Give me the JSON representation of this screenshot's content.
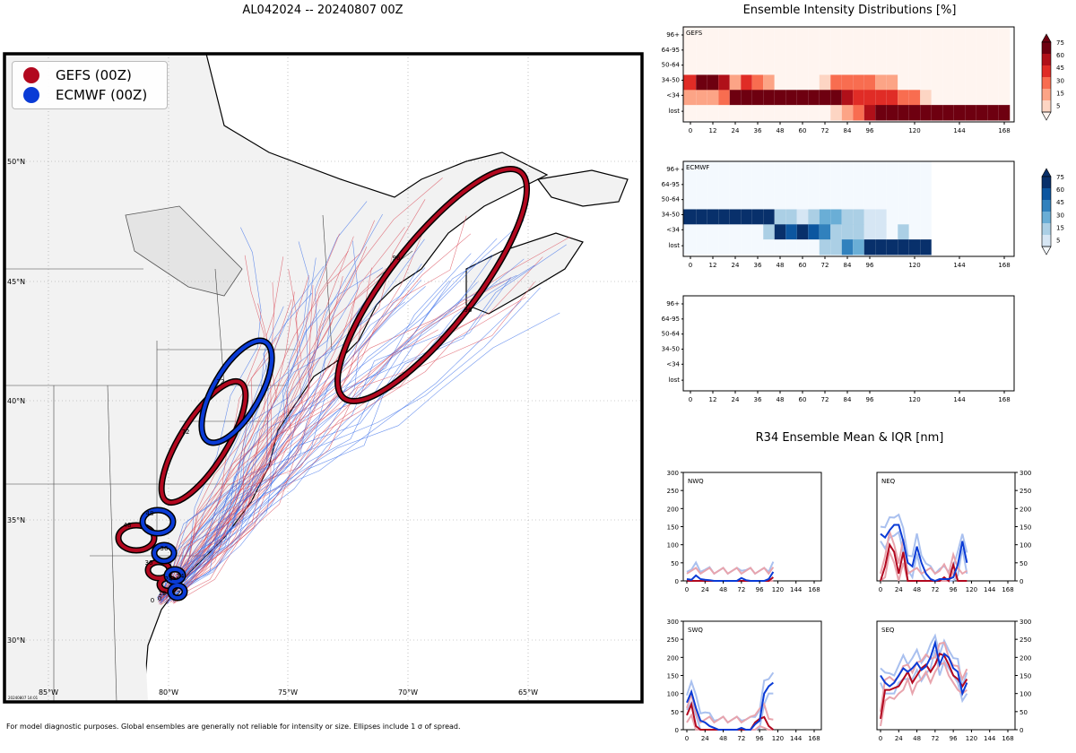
{
  "map": {
    "title": "AL042024 -- 20240807 00Z",
    "legend": [
      {
        "label": "GEFS (00Z)",
        "color": "#b2081f"
      },
      {
        "label": "ECMWF (00Z)",
        "color": "#0a3bd6"
      }
    ],
    "lat_labels": [
      "50°N",
      "45°N",
      "40°N",
      "35°N",
      "30°N"
    ],
    "lon_labels": [
      "85°W",
      "80°W",
      "75°W",
      "70°W",
      "65°W"
    ],
    "ellipse_labels": {
      "gefs": [
        "96",
        "96",
        "72",
        "72",
        "48",
        "36",
        "24",
        "12",
        "0"
      ],
      "ecmwf": [
        "72",
        "48",
        "36",
        "24",
        "12",
        "0"
      ]
    },
    "stamp": "20240807 14:01"
  },
  "intensity": {
    "title": "Ensemble Intensity Distributions [%]",
    "row_labels": [
      "96+",
      "64-95",
      "50-64",
      "34-50",
      "<34",
      "lost"
    ],
    "x_ticks": [
      "0",
      "12",
      "24",
      "36",
      "48",
      "60",
      "72",
      "84",
      "96",
      "120",
      "144",
      "168"
    ],
    "colorbar_ticks": [
      "75",
      "60",
      "45",
      "30",
      "15",
      "5"
    ],
    "panels": [
      {
        "name": "GEFS",
        "label": "GEFS"
      },
      {
        "name": "ECMWF",
        "label": "ECMWF"
      },
      {
        "name": "empty",
        "label": ""
      }
    ]
  },
  "r34": {
    "title": "R34 Ensemble Mean & IQR [nm]",
    "y_ticks": [
      "300",
      "250",
      "200",
      "150",
      "100",
      "50",
      "0"
    ],
    "x_ticks": [
      "0",
      "24",
      "48",
      "72",
      "96",
      "120",
      "144",
      "168"
    ],
    "panels": [
      "NWQ",
      "NEQ",
      "SWQ",
      "SEQ"
    ]
  },
  "footer": "For model diagnostic purposes. Global ensembles are generally not reliable for intensity or size. Ellipses include 1 σ of spread.",
  "chart_data": [
    {
      "type": "heatmap",
      "title": "GEFS",
      "x_hours": [
        0,
        6,
        12,
        18,
        24,
        30,
        36,
        42,
        48,
        54,
        60,
        66,
        72,
        78,
        84,
        90,
        96,
        102,
        108,
        114,
        120,
        126,
        132,
        138,
        144,
        150,
        156,
        162,
        168
      ],
      "rows": [
        "96+",
        "64-95",
        "50-64",
        "34-50",
        "<34",
        "lost"
      ],
      "values": {
        "96+": [
          2,
          2,
          2,
          2,
          2,
          2,
          2,
          2,
          2,
          2,
          2,
          2,
          2,
          2,
          2,
          2,
          2,
          2,
          2,
          2,
          2,
          2,
          2,
          2,
          2,
          2,
          2,
          2,
          2
        ],
        "64-95": [
          2,
          2,
          2,
          2,
          2,
          2,
          2,
          2,
          2,
          2,
          2,
          2,
          2,
          2,
          2,
          2,
          2,
          2,
          2,
          2,
          2,
          2,
          2,
          2,
          2,
          2,
          2,
          2,
          2
        ],
        "50-64": [
          2,
          2,
          2,
          2,
          2,
          2,
          2,
          2,
          2,
          2,
          2,
          2,
          2,
          2,
          2,
          2,
          2,
          2,
          2,
          2,
          2,
          2,
          2,
          2,
          2,
          2,
          2,
          2,
          2
        ],
        "34-50": [
          55,
          90,
          88,
          70,
          15,
          55,
          40,
          20,
          2,
          2,
          2,
          2,
          10,
          35,
          35,
          35,
          35,
          18,
          18,
          2,
          2,
          2,
          2,
          2,
          2,
          2,
          2,
          2,
          2
        ],
        "<34": [
          15,
          15,
          15,
          40,
          90,
          75,
          80,
          85,
          88,
          90,
          92,
          90,
          92,
          85,
          65,
          50,
          48,
          45,
          45,
          40,
          30,
          10,
          2,
          2,
          2,
          2,
          2,
          2,
          2
        ],
        "lost": [
          2,
          2,
          2,
          2,
          2,
          2,
          2,
          2,
          2,
          2,
          2,
          2,
          2,
          8,
          20,
          35,
          60,
          80,
          90,
          95,
          97,
          98,
          98,
          98,
          98,
          98,
          98,
          98,
          98
        ]
      }
    },
    {
      "type": "heatmap",
      "title": "ECMWF",
      "x_hours": [
        0,
        6,
        12,
        18,
        24,
        30,
        36,
        42,
        48,
        54,
        60,
        66,
        72,
        78,
        84,
        90,
        96,
        102,
        108,
        114,
        120,
        126
      ],
      "rows": [
        "96+",
        "64-95",
        "50-64",
        "34-50",
        "<34",
        "lost"
      ],
      "values": {
        "96+": [
          2,
          2,
          2,
          2,
          2,
          2,
          2,
          2,
          2,
          2,
          2,
          2,
          2,
          2,
          2,
          2,
          2,
          2,
          2,
          2,
          2,
          2
        ],
        "64-95": [
          2,
          2,
          2,
          2,
          2,
          2,
          2,
          2,
          2,
          2,
          2,
          2,
          2,
          2,
          2,
          2,
          2,
          2,
          2,
          2,
          2,
          2
        ],
        "50-64": [
          2,
          2,
          2,
          2,
          2,
          2,
          2,
          2,
          2,
          2,
          2,
          2,
          2,
          2,
          2,
          2,
          2,
          2,
          2,
          2,
          2,
          2
        ],
        "34-50": [
          98,
          98,
          98,
          98,
          98,
          98,
          98,
          75,
          25,
          25,
          10,
          20,
          40,
          30,
          20,
          20,
          10,
          10,
          2,
          2,
          2,
          2
        ],
        "<34": [
          2,
          2,
          2,
          2,
          2,
          2,
          2,
          25,
          80,
          65,
          75,
          60,
          45,
          20,
          20,
          20,
          10,
          10,
          2,
          20,
          2,
          2
        ],
        "lost": [
          2,
          2,
          2,
          2,
          2,
          2,
          2,
          2,
          2,
          2,
          2,
          2,
          15,
          25,
          50,
          40,
          80,
          95,
          98,
          98,
          98,
          98
        ]
      }
    },
    {
      "type": "line",
      "title": "R34 NWQ",
      "xlim": [
        0,
        168
      ],
      "ylim": [
        0,
        300
      ],
      "series": [
        {
          "name": "ECMWF mean",
          "x": [
            0,
            6,
            12,
            18,
            24,
            30,
            36,
            42,
            48,
            54,
            60,
            66,
            72,
            78,
            84,
            90,
            96,
            102,
            108,
            114
          ],
          "y": [
            5,
            3,
            15,
            5,
            3,
            2,
            0,
            0,
            0,
            0,
            0,
            0,
            8,
            2,
            0,
            0,
            0,
            0,
            5,
            25
          ]
        },
        {
          "name": "GEFS mean",
          "x": [
            0,
            6,
            12,
            18,
            24,
            30,
            36,
            42,
            48,
            54,
            60,
            66,
            72,
            78,
            84,
            90,
            96,
            102,
            108,
            114
          ],
          "y": [
            0,
            0,
            0,
            0,
            0,
            0,
            0,
            0,
            0,
            0,
            0,
            0,
            0,
            0,
            0,
            0,
            0,
            0,
            0,
            10
          ]
        }
      ]
    },
    {
      "type": "line",
      "title": "R34 NEQ",
      "xlim": [
        0,
        168
      ],
      "ylim": [
        0,
        300
      ],
      "series": [
        {
          "name": "ECMWF mean",
          "x": [
            0,
            6,
            12,
            18,
            24,
            30,
            36,
            42,
            48,
            54,
            60,
            66,
            72,
            78,
            84,
            90,
            96,
            102,
            108,
            114
          ],
          "y": [
            130,
            120,
            140,
            155,
            155,
            110,
            50,
            40,
            95,
            50,
            20,
            5,
            0,
            5,
            5,
            5,
            10,
            45,
            110,
            50
          ]
        },
        {
          "name": "GEFS mean",
          "x": [
            0,
            6,
            12,
            18,
            24,
            30,
            36,
            42,
            48,
            54,
            60,
            66,
            72,
            78,
            84,
            90,
            96,
            102,
            108,
            114
          ],
          "y": [
            0,
            40,
            100,
            80,
            20,
            80,
            0,
            0,
            0,
            0,
            0,
            0,
            0,
            0,
            10,
            0,
            45,
            0,
            0,
            0
          ]
        }
      ]
    },
    {
      "type": "line",
      "title": "R34 SWQ",
      "xlim": [
        0,
        168
      ],
      "ylim": [
        0,
        300
      ],
      "series": [
        {
          "name": "ECMWF mean",
          "x": [
            0,
            6,
            12,
            18,
            24,
            30,
            36,
            42,
            48,
            54,
            60,
            66,
            72,
            78,
            84,
            90,
            96,
            102,
            108,
            114
          ],
          "y": [
            75,
            105,
            60,
            25,
            20,
            10,
            5,
            0,
            0,
            0,
            0,
            0,
            5,
            0,
            0,
            15,
            25,
            100,
            120,
            130
          ]
        },
        {
          "name": "GEFS mean",
          "x": [
            0,
            6,
            12,
            18,
            24,
            30,
            36,
            42,
            48,
            54,
            60,
            66,
            72,
            78,
            84,
            90,
            96,
            102,
            108,
            114
          ],
          "y": [
            40,
            70,
            10,
            0,
            0,
            0,
            0,
            0,
            0,
            0,
            0,
            0,
            0,
            0,
            0,
            20,
            30,
            35,
            10,
            0
          ]
        }
      ]
    },
    {
      "type": "line",
      "title": "R34 SEQ",
      "xlim": [
        0,
        168
      ],
      "ylim": [
        0,
        300
      ],
      "series": [
        {
          "name": "ECMWF mean",
          "x": [
            0,
            6,
            12,
            18,
            24,
            30,
            36,
            42,
            48,
            54,
            60,
            66,
            72,
            78,
            84,
            90,
            96,
            102,
            108,
            114
          ],
          "y": [
            150,
            130,
            120,
            130,
            150,
            170,
            160,
            170,
            185,
            165,
            175,
            200,
            240,
            180,
            210,
            200,
            170,
            160,
            100,
            130
          ]
        },
        {
          "name": "GEFS mean",
          "x": [
            0,
            6,
            12,
            18,
            24,
            30,
            36,
            42,
            48,
            54,
            60,
            66,
            72,
            78,
            84,
            90,
            96,
            102,
            108,
            114
          ],
          "y": [
            30,
            110,
            110,
            115,
            120,
            140,
            160,
            130,
            150,
            170,
            180,
            160,
            180,
            210,
            205,
            180,
            150,
            140,
            120,
            140
          ]
        }
      ]
    }
  ]
}
